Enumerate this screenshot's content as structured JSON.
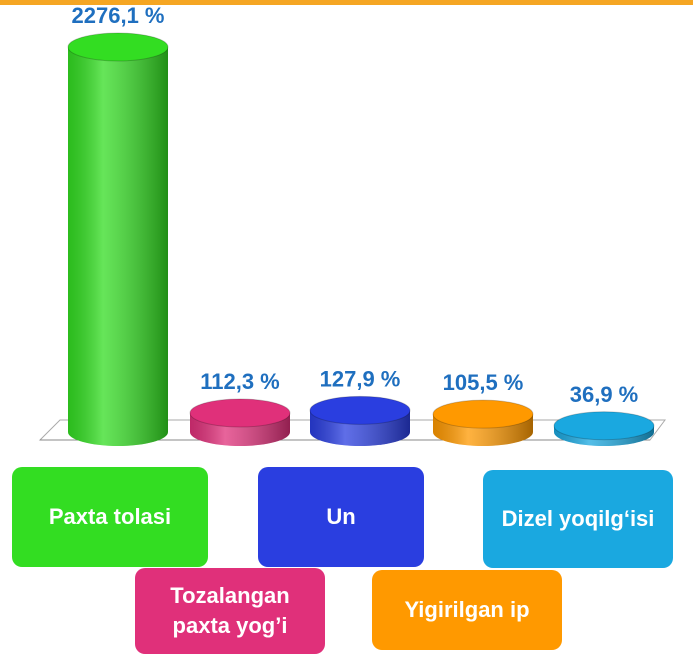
{
  "chart_data": {
    "type": "bar",
    "categories": [
      "Paxta tolasi",
      "Tozalangan paxta yog’i",
      "Un",
      "Yigirilgan ip",
      "Dizel yoqilg‘isi"
    ],
    "values": [
      2276.1,
      112.3,
      127.9,
      105.5,
      36.9
    ],
    "value_labels": [
      "2276,1 %",
      "112,3 %",
      "127,9 %",
      "105,5 %",
      "36,9 %"
    ],
    "colors": [
      "#33dd22",
      "#e0307a",
      "#2a3ee0",
      "#ff9900",
      "#1aa8e0"
    ]
  }
}
